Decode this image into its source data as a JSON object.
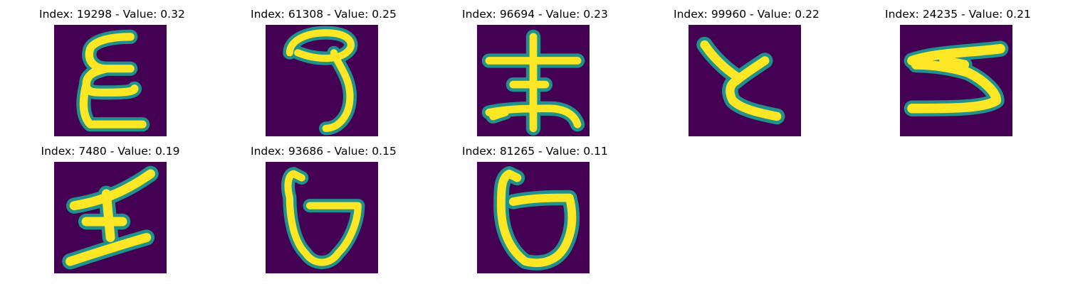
{
  "colors": {
    "background": "#440154",
    "stroke_core": "#fde725",
    "stroke_mid": "#5ec962",
    "stroke_edge": "#21918c",
    "stroke_outer": "#3b528b"
  },
  "panels": [
    {
      "title": "Index: 19298 - Value: 0.32",
      "glyph": "epsilon-shape"
    },
    {
      "title": "Index: 61308 - Value: 0.25",
      "glyph": "nine-shape"
    },
    {
      "title": "Index: 96694 - Value: 0.23",
      "glyph": "earth-radical-shape"
    },
    {
      "title": "Index: 99960 - Value: 0.22",
      "glyph": "hiragana-ko-shape"
    },
    {
      "title": "Index: 24235 - Value: 0.21",
      "glyph": "s-shape"
    },
    {
      "title": "Index: 7480 - Value: 0.19",
      "glyph": "cross-shape"
    },
    {
      "title": "Index: 93686 - Value: 0.15",
      "glyph": "open-loop-shape"
    },
    {
      "title": "Index: 81265 - Value: 0.11",
      "glyph": "open-loop-shape-2"
    }
  ]
}
